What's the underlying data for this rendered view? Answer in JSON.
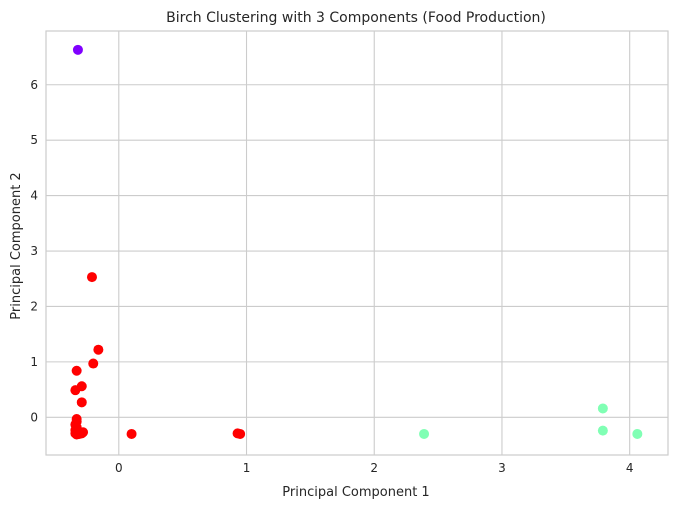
{
  "chart_data": {
    "type": "scatter",
    "title": "Birch Clustering with 3 Components (Food Production)",
    "xlabel": "Principal Component 1",
    "ylabel": "Principal Component 2",
    "xlim": [
      -0.57,
      4.3
    ],
    "ylim": [
      -0.68,
      6.97
    ],
    "xticks": [
      0,
      1,
      2,
      3,
      4
    ],
    "yticks": [
      0,
      1,
      2,
      3,
      4,
      5,
      6
    ],
    "grid": true,
    "colors": {
      "cluster_purple": "#8000ff",
      "cluster_red": "#ff0000",
      "cluster_green": "#80ffb4",
      "grid": "#cccccc",
      "axes_edge": "#cccccc"
    },
    "series": [
      {
        "color": "#8000ff",
        "points": [
          [
            -0.32,
            6.63
          ]
        ]
      },
      {
        "color": "#ff0000",
        "points": [
          [
            -0.21,
            2.53
          ],
          [
            -0.16,
            1.22
          ],
          [
            -0.2,
            0.97
          ],
          [
            -0.33,
            0.84
          ],
          [
            -0.29,
            0.56
          ],
          [
            -0.34,
            0.49
          ],
          [
            -0.29,
            0.27
          ],
          [
            -0.33,
            -0.03
          ],
          [
            -0.33,
            -0.08
          ],
          [
            -0.34,
            -0.13
          ],
          [
            -0.33,
            -0.18
          ],
          [
            -0.34,
            -0.23
          ],
          [
            -0.33,
            -0.26
          ],
          [
            -0.34,
            -0.29
          ],
          [
            -0.31,
            -0.3
          ],
          [
            -0.29,
            -0.29
          ],
          [
            -0.28,
            -0.27
          ],
          [
            -0.33,
            -0.31
          ],
          [
            0.1,
            -0.3
          ],
          [
            0.93,
            -0.29
          ],
          [
            0.95,
            -0.3
          ]
        ]
      },
      {
        "color": "#80ffb4",
        "points": [
          [
            2.39,
            -0.3
          ],
          [
            3.79,
            0.16
          ],
          [
            3.79,
            -0.24
          ],
          [
            4.06,
            -0.3
          ]
        ]
      }
    ]
  }
}
